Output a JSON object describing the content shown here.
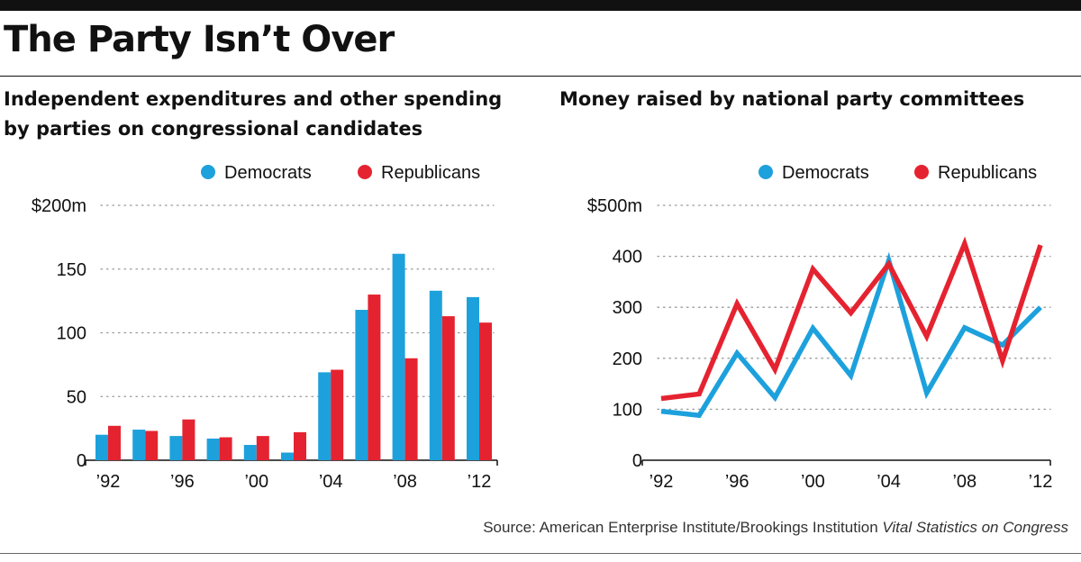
{
  "headline": "The Party Isn’t Over",
  "colors": {
    "democrats": "#1da1dc",
    "republicans": "#e52330",
    "gridline": "#999999",
    "axis": "#111111"
  },
  "chart_data": [
    {
      "type": "bar",
      "title": "Independent expenditures and other spending by parties on congressional candidates",
      "title_lines": [
        "Independent expenditures and other spending",
        "by parties on congressional candidates"
      ],
      "categories": [
        "1992",
        "1994",
        "1996",
        "1998",
        "2000",
        "2002",
        "2004",
        "2006",
        "2008",
        "2010",
        "2012"
      ],
      "x_tick_labels": [
        {
          "category": "1992",
          "label": "’92"
        },
        {
          "category": "1996",
          "label": "’96"
        },
        {
          "category": "2000",
          "label": "’00"
        },
        {
          "category": "2004",
          "label": "’04"
        },
        {
          "category": "2008",
          "label": "’08"
        },
        {
          "category": "2012",
          "label": "’12"
        }
      ],
      "series": [
        {
          "name": "Democrats",
          "color": "#1da1dc",
          "values": [
            20,
            24,
            19,
            17,
            12,
            6,
            69,
            118,
            162,
            133,
            128
          ]
        },
        {
          "name": "Republicans",
          "color": "#e52330",
          "values": [
            27,
            23,
            32,
            18,
            19,
            22,
            71,
            130,
            80,
            113,
            108
          ]
        }
      ],
      "ylim": [
        0,
        200
      ],
      "y_ticks": [
        {
          "value": 0,
          "label": "0"
        },
        {
          "value": 50,
          "label": "50"
        },
        {
          "value": 100,
          "label": "100"
        },
        {
          "value": 150,
          "label": "150"
        },
        {
          "value": 200,
          "label": "$200m"
        }
      ],
      "grid": true,
      "legend_position": "top-right"
    },
    {
      "type": "line",
      "title": "Money raised by national party committees",
      "title_lines": [
        "Money raised by national party committees"
      ],
      "x": [
        "1992",
        "1994",
        "1996",
        "1998",
        "2000",
        "2002",
        "2004",
        "2006",
        "2008",
        "2010",
        "2012"
      ],
      "x_tick_labels": [
        {
          "category": "1992",
          "label": "’92"
        },
        {
          "category": "1996",
          "label": "’96"
        },
        {
          "category": "2000",
          "label": "’00"
        },
        {
          "category": "2004",
          "label": "’04"
        },
        {
          "category": "2008",
          "label": "’08"
        },
        {
          "category": "2012",
          "label": "’12"
        }
      ],
      "series": [
        {
          "name": "Democrats",
          "color": "#1da1dc",
          "values": [
            96,
            88,
            210,
            123,
            259,
            166,
            392,
            132,
            260,
            226,
            300
          ]
        },
        {
          "name": "Republicans",
          "color": "#e52330",
          "values": [
            121,
            130,
            307,
            178,
            375,
            289,
            385,
            243,
            425,
            195,
            422
          ]
        }
      ],
      "ylim": [
        0,
        500
      ],
      "y_ticks": [
        {
          "value": 0,
          "label": "0"
        },
        {
          "value": 100,
          "label": "100"
        },
        {
          "value": 200,
          "label": "200"
        },
        {
          "value": 300,
          "label": "300"
        },
        {
          "value": 400,
          "label": "400"
        },
        {
          "value": 500,
          "label": "$500m"
        }
      ],
      "grid": true,
      "legend_position": "top-right"
    }
  ],
  "source": {
    "text": "Source: American Enterprise Institute/Brookings Institution ",
    "italic": "Vital Statistics on Congress"
  }
}
